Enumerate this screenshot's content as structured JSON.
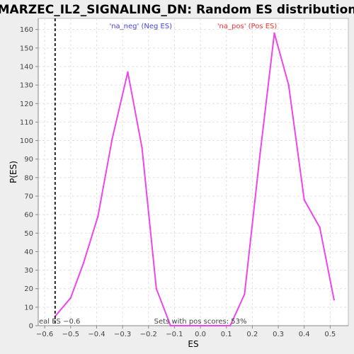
{
  "chart_data": {
    "type": "line",
    "title": "MARZEC_IL2_SIGNALING_DN: Random ES distribution",
    "xlabel": "ES",
    "ylabel": "P(ES)",
    "xlim": [
      -0.625,
      0.57
    ],
    "ylim": [
      0,
      166
    ],
    "xticks": [
      -0.6,
      -0.5,
      -0.4,
      -0.3,
      -0.2,
      -0.1,
      0.0,
      0.1,
      0.2,
      0.3,
      0.4,
      0.5
    ],
    "xtick_labels": [
      "−0.6",
      "−0.5",
      "−0.4",
      "−0.3",
      "−0.2",
      "−0.1",
      "0.0",
      "0.1",
      "0.2",
      "0.3",
      "0.4",
      "0.5"
    ],
    "yticks": [
      0,
      10,
      20,
      30,
      40,
      50,
      60,
      70,
      80,
      90,
      100,
      110,
      120,
      130,
      140,
      150,
      160
    ],
    "grid": true,
    "line_color": "#ee44ee",
    "legend": [
      {
        "label": "'na_neg' (Neg ES)",
        "color": "#4444dd",
        "x": -0.23
      },
      {
        "label": "'na_pos' (Pos ES)",
        "color": "#ee3333",
        "x": 0.18
      }
    ],
    "real_es": -0.56,
    "real_es_label": "eal ES −0.6",
    "pos_scores_note": "Sets with pos scores: 53%",
    "series": [
      {
        "points": [
          [
            -0.56,
            5
          ],
          [
            -0.5,
            15
          ],
          [
            -0.45,
            34
          ],
          [
            -0.395,
            59
          ],
          [
            -0.34,
            101
          ],
          [
            -0.28,
            137
          ],
          [
            -0.225,
            96
          ],
          [
            -0.17,
            20
          ],
          [
            -0.115,
            0
          ],
          [
            -0.06,
            0
          ],
          [
            0.0,
            0
          ],
          [
            0.06,
            0
          ],
          [
            0.115,
            0
          ],
          [
            0.17,
            17
          ],
          [
            0.23,
            93
          ],
          [
            0.285,
            158
          ],
          [
            0.34,
            130
          ],
          [
            0.4,
            68
          ],
          [
            0.46,
            53
          ],
          [
            0.515,
            14
          ]
        ]
      }
    ]
  }
}
